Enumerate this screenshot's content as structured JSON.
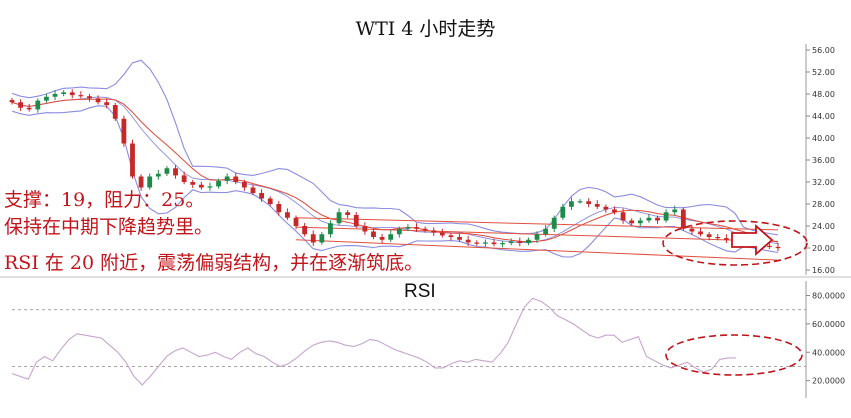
{
  "header": {
    "title": "WTI 4 小时走势"
  },
  "notes": [
    "支撑：19，阻力：25。",
    "保持在中期下降趋势里。",
    "RSI 在 20 附近，震荡偏弱结构，并在逐渐筑底。"
  ],
  "colors": {
    "candle_up": "#1e8a4a",
    "candle_down": "#c62828",
    "bollinger": "#8c8ce0",
    "moving_average": "#e04a3a",
    "trend_lines": "#e05040",
    "rsi_line": "#c7a3cf",
    "annotation": "#c0151b"
  },
  "chart_data": [
    {
      "type": "candlestick",
      "name": "price",
      "ylim": [
        16,
        56
      ],
      "ticks": [
        "56.00",
        "52.00",
        "48.00",
        "44.00",
        "40.00",
        "36.00",
        "32.00",
        "28.00",
        "24.00",
        "20.00",
        "16.00"
      ],
      "close_path": [
        46.5,
        45.5,
        45.2,
        46.8,
        47.5,
        48.0,
        48.3,
        47.8,
        47.6,
        47.2,
        46.5,
        46.0,
        43.5,
        39.0,
        33.0,
        31.0,
        33.0,
        33.5,
        34.5,
        33.2,
        32.0,
        31.5,
        31.0,
        31.2,
        32.2,
        33.0,
        32.0,
        31.0,
        30.0,
        29.0,
        28.0,
        26.5,
        25.5,
        24.0,
        22.5,
        21.0,
        22.5,
        24.5,
        26.5,
        26.0,
        24.0,
        23.0,
        22.0,
        21.5,
        22.5,
        23.5,
        23.8,
        23.5,
        23.2,
        22.8,
        22.3,
        22.0,
        21.5,
        21.0,
        20.8,
        21.0,
        20.7,
        20.9,
        21.2,
        20.9,
        21.5,
        22.5,
        23.5,
        25.5,
        27.5,
        28.5,
        28.5,
        28.0,
        27.5,
        27.0,
        26.5,
        25.0,
        24.5,
        25.0,
        25.5,
        25.0,
        26.5,
        27.0,
        23.5,
        23.0,
        22.5,
        22.0,
        21.8,
        21.5,
        21.0,
        20.8,
        20.6,
        20.4,
        20.2,
        20.0
      ],
      "support": 19,
      "resistance": 25
    },
    {
      "type": "line",
      "name": "RSI",
      "ylim": [
        12,
        86
      ],
      "ticks": [
        "80.0000",
        "60.0000",
        "40.0000",
        "20.0000"
      ],
      "reference_lines": [
        70,
        30
      ],
      "values": [
        25,
        23,
        21,
        33,
        37,
        34,
        42,
        49,
        53,
        52,
        51,
        50,
        45,
        40,
        33,
        23,
        17,
        23,
        30,
        37,
        41,
        43,
        40,
        37,
        38,
        40,
        37,
        35,
        40,
        43,
        39,
        37,
        33,
        30,
        32,
        36,
        41,
        45,
        47,
        48,
        47,
        45,
        44,
        46,
        49,
        48,
        45,
        42,
        40,
        38,
        36,
        33,
        29,
        29,
        32,
        34,
        33,
        35,
        34,
        33,
        39,
        47,
        60,
        72,
        78,
        76,
        72,
        66,
        63,
        60,
        56,
        52,
        50,
        52,
        52,
        47,
        49,
        51,
        37,
        34,
        31,
        29,
        31,
        33,
        29,
        26,
        28,
        35,
        36,
        36
      ]
    }
  ]
}
